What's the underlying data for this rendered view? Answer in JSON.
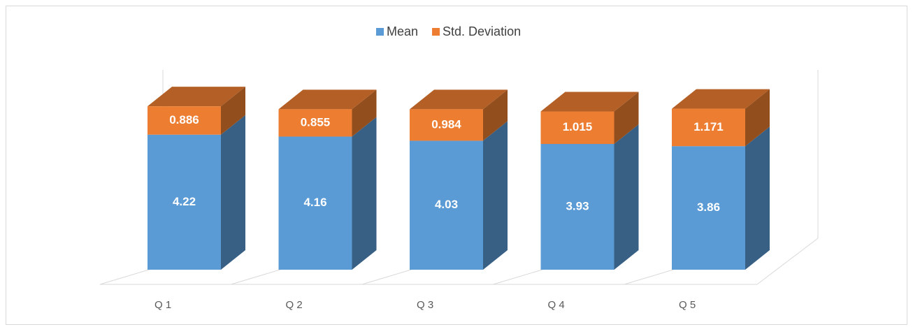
{
  "chart_data": {
    "type": "bar3d_stacked",
    "categories": [
      "Q 1",
      "Q 2",
      "Q 3",
      "Q 4",
      "Q 5"
    ],
    "series": [
      {
        "name": "Mean",
        "color": "#5b9bd5",
        "values": [
          4.22,
          4.16,
          4.03,
          3.93,
          3.86
        ]
      },
      {
        "name": "Std. Deviation",
        "color": "#ed7d31",
        "values": [
          0.886,
          0.855,
          0.984,
          1.015,
          1.171
        ]
      }
    ],
    "legend": "top"
  }
}
